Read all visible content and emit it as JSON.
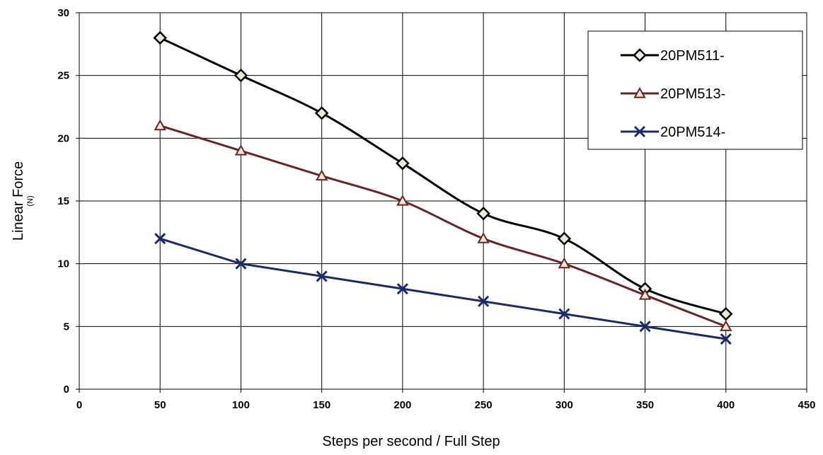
{
  "chart_data": {
    "type": "line",
    "title": "",
    "xlabel": "Steps per second / Full Step",
    "ylabel": "Linear Force",
    "ylabel_unit": "(N)",
    "xlim": [
      0,
      450
    ],
    "ylim": [
      0,
      30
    ],
    "xticks": [
      0,
      50,
      100,
      150,
      200,
      250,
      300,
      350,
      400,
      450
    ],
    "yticks": [
      0,
      5,
      10,
      15,
      20,
      25,
      30
    ],
    "grid": true,
    "legend_position": "top-right",
    "x": [
      50,
      100,
      150,
      200,
      250,
      300,
      350,
      400
    ],
    "series": [
      {
        "name": "20PM511-",
        "values": [
          28,
          25,
          22,
          18,
          14,
          12,
          8,
          6
        ],
        "color": "#000000",
        "marker": "diamond",
        "marker_fill": "#ece9d8"
      },
      {
        "name": "20PM513-",
        "values": [
          21,
          19,
          17,
          15,
          12,
          10,
          7.5,
          5
        ],
        "color": "#6b2424",
        "marker": "triangle",
        "marker_fill": "#ece9d8"
      },
      {
        "name": "20PM514-",
        "values": [
          12,
          10,
          9,
          8,
          7,
          6,
          5,
          4
        ],
        "color": "#1a2b6b",
        "marker": "x",
        "marker_fill": "none"
      }
    ]
  }
}
